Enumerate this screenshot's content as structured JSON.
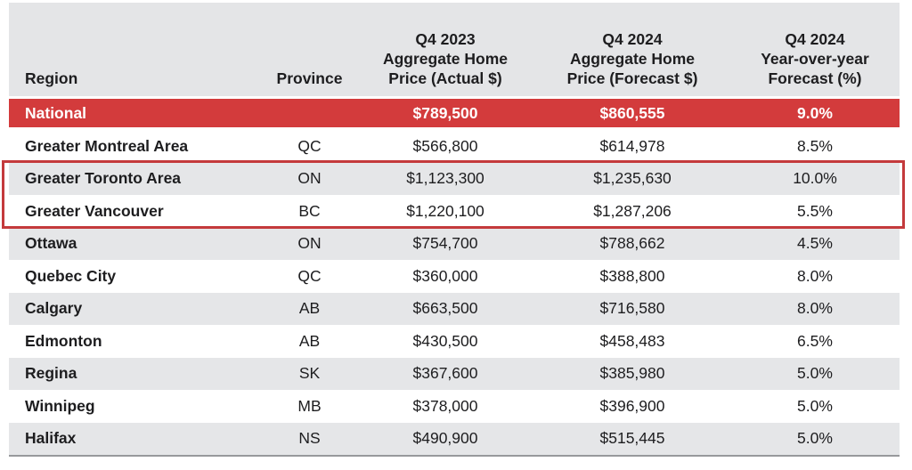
{
  "table": {
    "columns": [
      {
        "id": "region",
        "lines": [
          "Region"
        ],
        "align": "left"
      },
      {
        "id": "province",
        "lines": [
          "Province"
        ],
        "align": "center"
      },
      {
        "id": "q4_2023_actual",
        "lines": [
          "Q4 2023",
          "Aggregate Home",
          "Price (Actual $)"
        ],
        "align": "center"
      },
      {
        "id": "q4_2024_forecast",
        "lines": [
          "Q4 2024",
          "Aggregate Home",
          "Price (Forecast $)"
        ],
        "align": "center"
      },
      {
        "id": "yoy_forecast",
        "lines": [
          "Q4 2024",
          "Year-over-year",
          "Forecast (%)"
        ],
        "align": "center"
      }
    ],
    "rows": [
      {
        "region": "National",
        "province": "",
        "q4_2023_actual": "$789,500",
        "q4_2024_forecast": "$860,555",
        "yoy_forecast": "9.0%",
        "variant": "national",
        "highlighted": false
      },
      {
        "region": "Greater Montreal Area",
        "province": "QC",
        "q4_2023_actual": "$566,800",
        "q4_2024_forecast": "$614,978",
        "yoy_forecast": "8.5%",
        "variant": "body",
        "highlighted": false
      },
      {
        "region": "Greater Toronto Area",
        "province": "ON",
        "q4_2023_actual": "$1,123,300",
        "q4_2024_forecast": "$1,235,630",
        "yoy_forecast": "10.0%",
        "variant": "body",
        "highlighted": true
      },
      {
        "region": "Greater Vancouver",
        "province": "BC",
        "q4_2023_actual": "$1,220,100",
        "q4_2024_forecast": "$1,287,206",
        "yoy_forecast": "5.5%",
        "variant": "body",
        "highlighted": true
      },
      {
        "region": "Ottawa",
        "province": "ON",
        "q4_2023_actual": "$754,700",
        "q4_2024_forecast": "$788,662",
        "yoy_forecast": "4.5%",
        "variant": "body",
        "highlighted": false
      },
      {
        "region": "Quebec City",
        "province": "QC",
        "q4_2023_actual": "$360,000",
        "q4_2024_forecast": "$388,800",
        "yoy_forecast": "8.0%",
        "variant": "body",
        "highlighted": false
      },
      {
        "region": "Calgary",
        "province": "AB",
        "q4_2023_actual": "$663,500",
        "q4_2024_forecast": "$716,580",
        "yoy_forecast": "8.0%",
        "variant": "body",
        "highlighted": false
      },
      {
        "region": "Edmonton",
        "province": "AB",
        "q4_2023_actual": "$430,500",
        "q4_2024_forecast": "$458,483",
        "yoy_forecast": "6.5%",
        "variant": "body",
        "highlighted": false
      },
      {
        "region": "Regina",
        "province": "SK",
        "q4_2023_actual": "$367,600",
        "q4_2024_forecast": "$385,980",
        "yoy_forecast": "5.0%",
        "variant": "body",
        "highlighted": false
      },
      {
        "region": "Winnipeg",
        "province": "MB",
        "q4_2023_actual": "$378,000",
        "q4_2024_forecast": "$396,900",
        "yoy_forecast": "5.0%",
        "variant": "body",
        "highlighted": false
      },
      {
        "region": "Halifax",
        "province": "NS",
        "q4_2023_actual": "$490,900",
        "q4_2024_forecast": "$515,445",
        "yoy_forecast": "5.0%",
        "variant": "body",
        "highlighted": false
      }
    ],
    "colors": {
      "national_row_bg": "#d33b3c",
      "national_row_text": "#ffffff",
      "header_bg": "#e4e5e7",
      "shaded_row_bg": "#e5e6e8",
      "highlight_border": "#c43a3c",
      "bottom_rule": "#97999c",
      "text": "#1d1d1f"
    }
  },
  "chart_data": {
    "type": "table",
    "title": "",
    "columns": [
      "Region",
      "Province",
      "Q4 2023 Aggregate Home Price (Actual $)",
      "Q4 2024 Aggregate Home Price (Forecast $)",
      "Q4 2024 Year-over-year Forecast (%)"
    ],
    "rows": [
      [
        "National",
        "",
        789500,
        860555,
        9.0
      ],
      [
        "Greater Montreal Area",
        "QC",
        566800,
        614978,
        8.5
      ],
      [
        "Greater Toronto Area",
        "ON",
        1123300,
        1235630,
        10.0
      ],
      [
        "Greater Vancouver",
        "BC",
        1220100,
        1287206,
        5.5
      ],
      [
        "Ottawa",
        "ON",
        754700,
        788662,
        4.5
      ],
      [
        "Quebec City",
        "QC",
        360000,
        388800,
        8.0
      ],
      [
        "Calgary",
        "AB",
        663500,
        716580,
        8.0
      ],
      [
        "Edmonton",
        "AB",
        430500,
        458483,
        6.5
      ],
      [
        "Regina",
        "SK",
        367600,
        385980,
        5.0
      ],
      [
        "Winnipeg",
        "MB",
        378000,
        396900,
        5.0
      ],
      [
        "Halifax",
        "NS",
        490900,
        515445,
        5.0
      ]
    ],
    "notes": "Rows for Greater Toronto Area and Greater Vancouver are outlined in red; National row has red background"
  }
}
